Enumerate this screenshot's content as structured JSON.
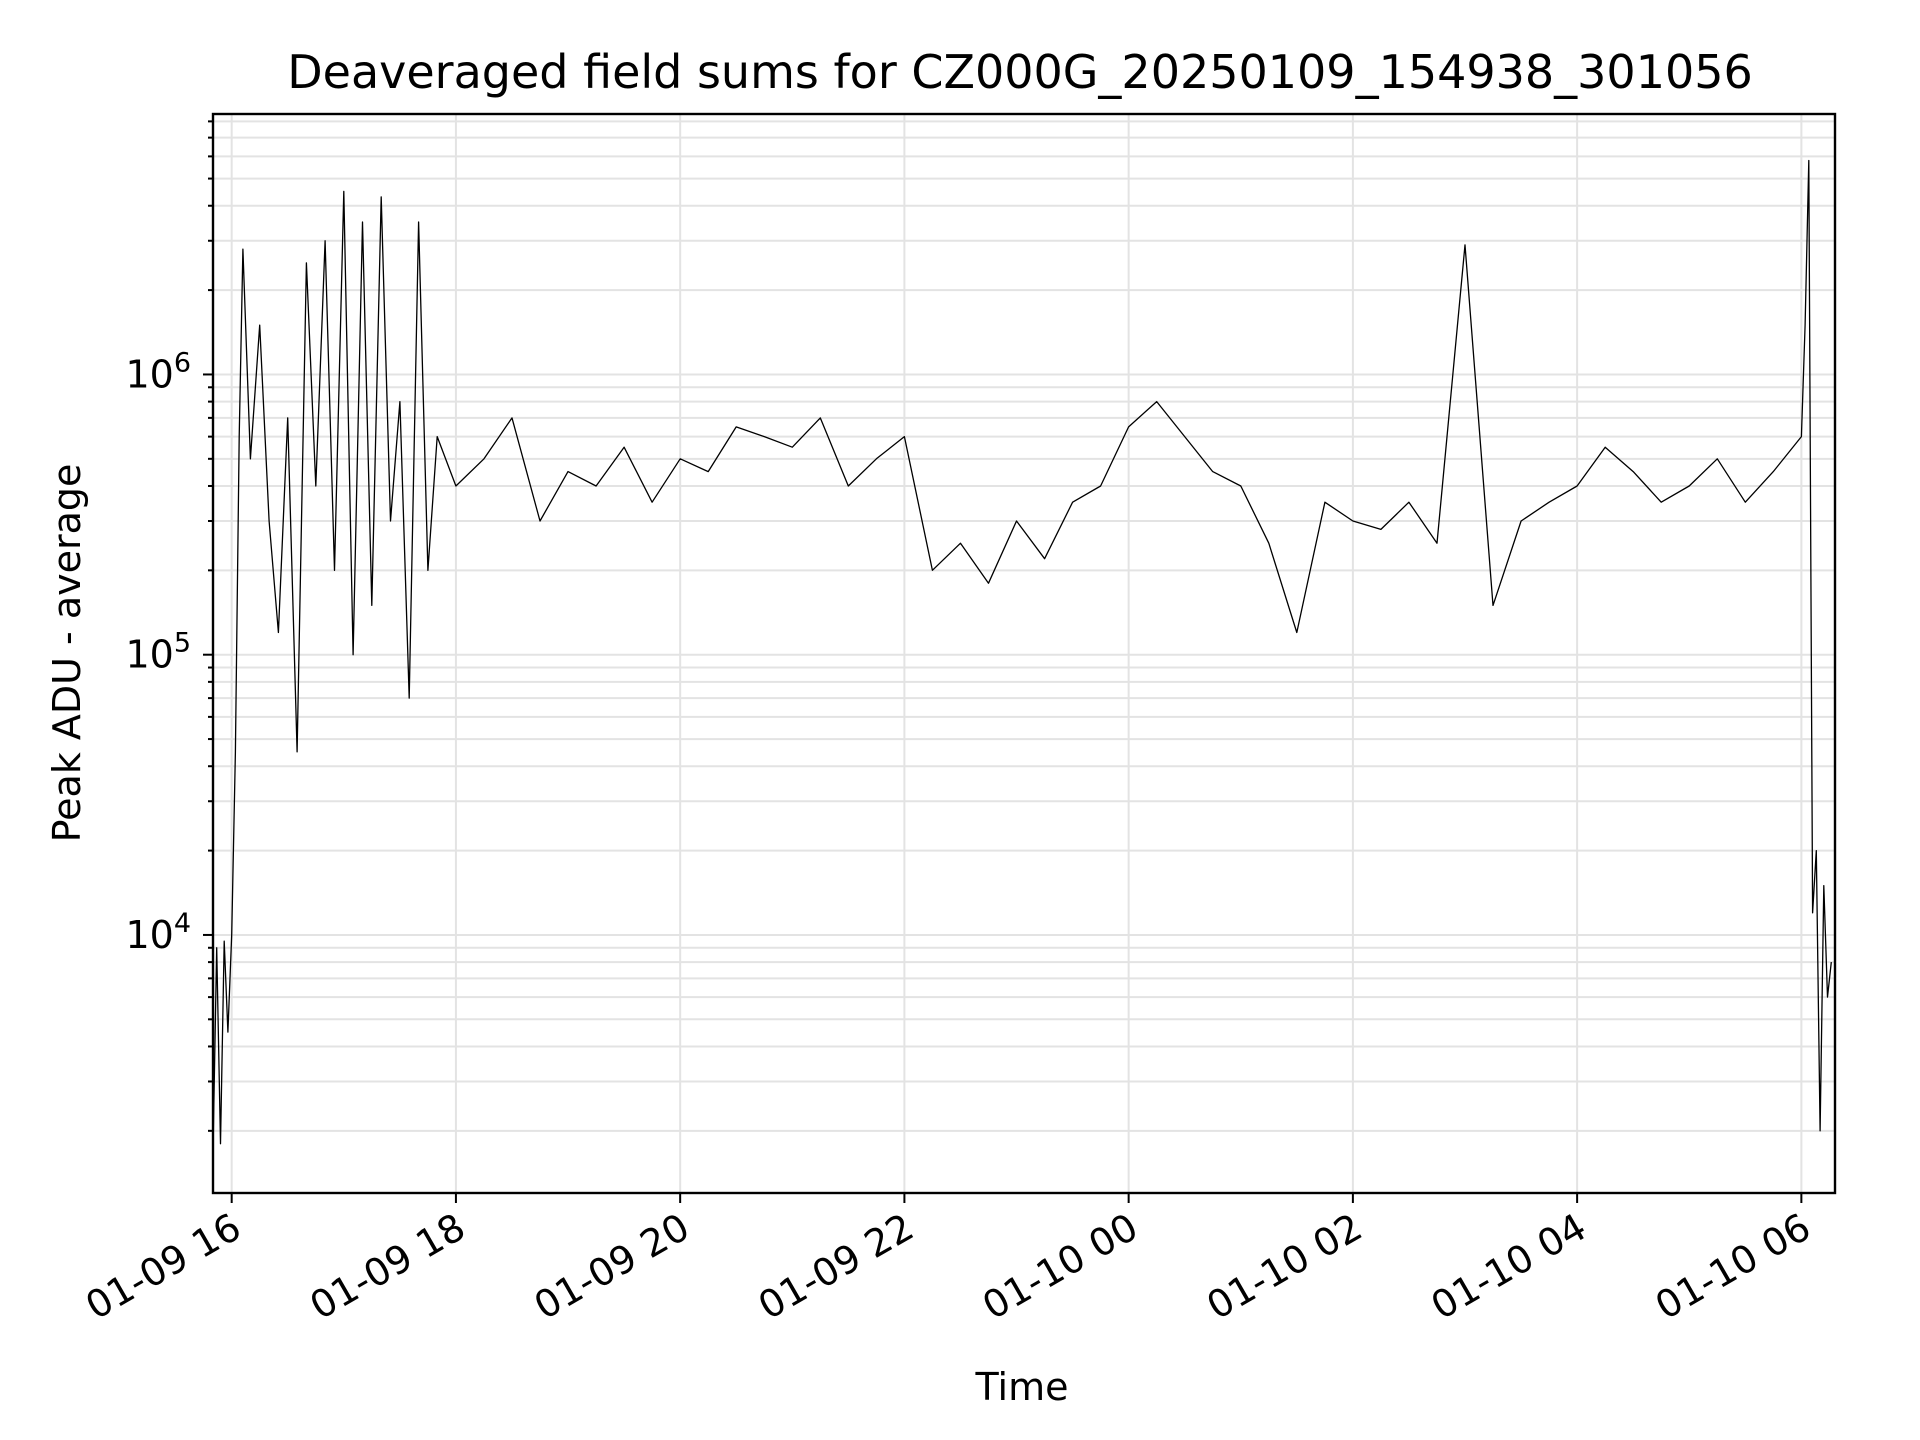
{
  "chart_data": {
    "type": "line",
    "title": "Deaveraged field sums for CZ000G_20250109_154938_301056",
    "xlabel": "Time",
    "ylabel": "Peak ADU - average",
    "yscale": "log",
    "ylim": [
      1200,
      8500000
    ],
    "xlim": [
      "2025-01-09 15:50",
      "2025-01-10 06:18"
    ],
    "grid": true,
    "line_color": "#000000",
    "x_ticks": [
      {
        "value": "2025-01-09 16:00",
        "label": "01-09 16"
      },
      {
        "value": "2025-01-09 18:00",
        "label": "01-09 18"
      },
      {
        "value": "2025-01-09 20:00",
        "label": "01-09 20"
      },
      {
        "value": "2025-01-09 22:00",
        "label": "01-09 22"
      },
      {
        "value": "2025-01-10 00:00",
        "label": "01-10 00"
      },
      {
        "value": "2025-01-10 02:00",
        "label": "01-10 02"
      },
      {
        "value": "2025-01-10 04:00",
        "label": "01-10 04"
      },
      {
        "value": "2025-01-10 06:00",
        "label": "01-10 06"
      }
    ],
    "y_ticks": [
      {
        "value": 10000,
        "base": "10",
        "exp": "4"
      },
      {
        "value": 100000,
        "base": "10",
        "exp": "5"
      },
      {
        "value": 1000000,
        "base": "10",
        "exp": "6"
      }
    ],
    "series": [
      {
        "x": [
          "2025-01-09 15:50",
          "2025-01-09 15:52",
          "2025-01-09 15:54",
          "2025-01-09 15:56",
          "2025-01-09 15:58",
          "2025-01-09 16:00",
          "2025-01-09 16:02",
          "2025-01-09 16:04",
          "2025-01-09 16:06",
          "2025-01-09 16:10",
          "2025-01-09 16:15",
          "2025-01-09 16:20",
          "2025-01-09 16:25",
          "2025-01-09 16:30",
          "2025-01-09 16:35",
          "2025-01-09 16:40",
          "2025-01-09 16:45",
          "2025-01-09 16:50",
          "2025-01-09 16:55",
          "2025-01-09 17:00",
          "2025-01-09 17:05",
          "2025-01-09 17:10",
          "2025-01-09 17:15",
          "2025-01-09 17:20",
          "2025-01-09 17:25",
          "2025-01-09 17:30",
          "2025-01-09 17:35",
          "2025-01-09 17:40",
          "2025-01-09 17:45",
          "2025-01-09 17:50",
          "2025-01-09 18:00",
          "2025-01-09 18:15",
          "2025-01-09 18:30",
          "2025-01-09 18:45",
          "2025-01-09 19:00",
          "2025-01-09 19:15",
          "2025-01-09 19:30",
          "2025-01-09 19:45",
          "2025-01-09 20:00",
          "2025-01-09 20:15",
          "2025-01-09 20:30",
          "2025-01-09 20:45",
          "2025-01-09 21:00",
          "2025-01-09 21:15",
          "2025-01-09 21:30",
          "2025-01-09 21:45",
          "2025-01-09 22:00",
          "2025-01-09 22:15",
          "2025-01-09 22:30",
          "2025-01-09 22:45",
          "2025-01-09 23:00",
          "2025-01-09 23:15",
          "2025-01-09 23:30",
          "2025-01-09 23:45",
          "2025-01-10 00:00",
          "2025-01-10 00:15",
          "2025-01-10 00:30",
          "2025-01-10 00:45",
          "2025-01-10 01:00",
          "2025-01-10 01:15",
          "2025-01-10 01:30",
          "2025-01-10 01:45",
          "2025-01-10 02:00",
          "2025-01-10 02:15",
          "2025-01-10 02:30",
          "2025-01-10 02:45",
          "2025-01-10 03:00",
          "2025-01-10 03:15",
          "2025-01-10 03:30",
          "2025-01-10 03:45",
          "2025-01-10 04:00",
          "2025-01-10 04:15",
          "2025-01-10 04:30",
          "2025-01-10 04:45",
          "2025-01-10 05:00",
          "2025-01-10 05:15",
          "2025-01-10 05:30",
          "2025-01-10 05:45",
          "2025-01-10 06:00",
          "2025-01-10 06:02",
          "2025-01-10 06:04",
          "2025-01-10 06:06",
          "2025-01-10 06:08",
          "2025-01-10 06:10",
          "2025-01-10 06:12",
          "2025-01-10 06:14",
          "2025-01-10 06:16"
        ],
        "y": [
          1700,
          9000,
          1800,
          9500,
          4500,
          10000,
          45000,
          600000,
          2800000,
          500000,
          1500000,
          300000,
          120000,
          700000,
          45000,
          2500000,
          400000,
          3000000,
          200000,
          4500000,
          100000,
          3500000,
          150000,
          4300000,
          300000,
          800000,
          70000,
          3500000,
          200000,
          600000,
          400000,
          500000,
          700000,
          300000,
          450000,
          400000,
          550000,
          350000,
          500000,
          450000,
          650000,
          600000,
          550000,
          700000,
          400000,
          500000,
          600000,
          200000,
          250000,
          180000,
          300000,
          220000,
          350000,
          400000,
          650000,
          800000,
          600000,
          450000,
          400000,
          250000,
          120000,
          350000,
          300000,
          280000,
          350000,
          250000,
          2900000,
          150000,
          300000,
          350000,
          400000,
          550000,
          450000,
          350000,
          400000,
          500000,
          350000,
          450000,
          600000,
          1500000,
          5800000,
          12000,
          20000,
          2000,
          15000,
          6000,
          8000
        ]
      }
    ]
  }
}
